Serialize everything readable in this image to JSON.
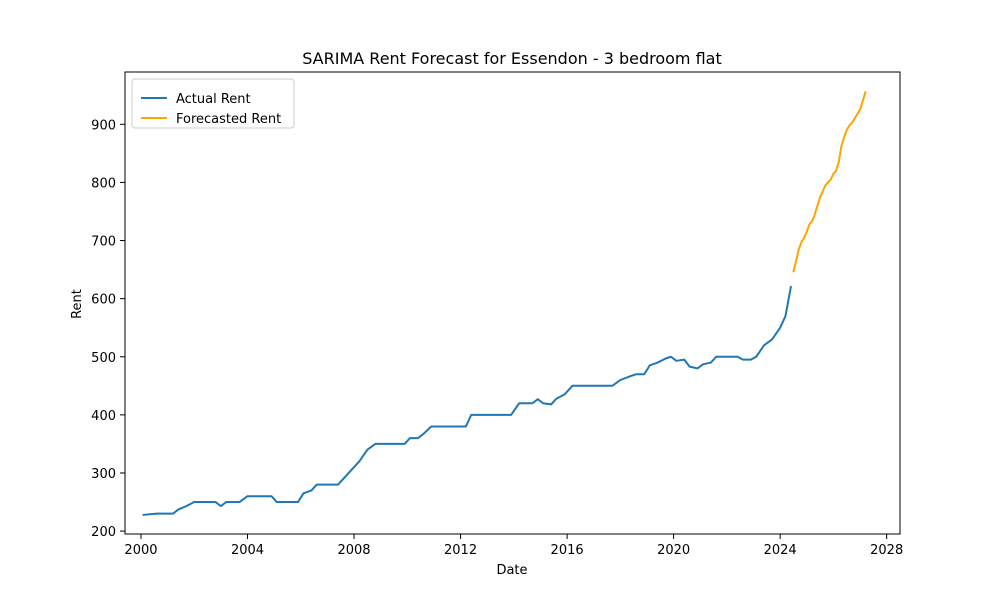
{
  "chart_data": {
    "type": "line",
    "title": "SARIMA Rent Forecast for Essendon - 3 bedroom flat",
    "xlabel": "Date",
    "ylabel": "Rent",
    "xlim": [
      1999.4,
      2028.5
    ],
    "ylim": [
      195,
      990
    ],
    "x_ticks": [
      2000,
      2004,
      2008,
      2012,
      2016,
      2020,
      2024,
      2028
    ],
    "y_ticks": [
      200,
      300,
      400,
      500,
      600,
      700,
      800,
      900
    ],
    "grid": false,
    "legend_position": "top-left",
    "series": [
      {
        "name": "Actual Rent",
        "color": "#1f77b4",
        "points": [
          [
            2000.1,
            228
          ],
          [
            2000.6,
            230
          ],
          [
            2001.0,
            230
          ],
          [
            2001.2,
            230
          ],
          [
            2001.4,
            237
          ],
          [
            2001.7,
            243
          ],
          [
            2002.0,
            250
          ],
          [
            2002.5,
            250
          ],
          [
            2002.8,
            250
          ],
          [
            2003.0,
            243
          ],
          [
            2003.2,
            250
          ],
          [
            2003.7,
            250
          ],
          [
            2004.0,
            260
          ],
          [
            2004.5,
            260
          ],
          [
            2004.9,
            260
          ],
          [
            2005.1,
            250
          ],
          [
            2005.5,
            250
          ],
          [
            2005.9,
            250
          ],
          [
            2006.1,
            265
          ],
          [
            2006.4,
            270
          ],
          [
            2006.6,
            280
          ],
          [
            2007.0,
            280
          ],
          [
            2007.4,
            280
          ],
          [
            2007.8,
            300
          ],
          [
            2008.2,
            320
          ],
          [
            2008.5,
            340
          ],
          [
            2008.8,
            350
          ],
          [
            2009.2,
            350
          ],
          [
            2009.5,
            350
          ],
          [
            2009.9,
            350
          ],
          [
            2010.1,
            360
          ],
          [
            2010.4,
            360
          ],
          [
            2010.6,
            367
          ],
          [
            2010.9,
            380
          ],
          [
            2011.3,
            380
          ],
          [
            2011.7,
            380
          ],
          [
            2012.2,
            380
          ],
          [
            2012.4,
            400
          ],
          [
            2012.8,
            400
          ],
          [
            2013.2,
            400
          ],
          [
            2013.6,
            400
          ],
          [
            2013.9,
            400
          ],
          [
            2014.2,
            420
          ],
          [
            2014.5,
            420
          ],
          [
            2014.7,
            420
          ],
          [
            2014.9,
            427
          ],
          [
            2015.1,
            420
          ],
          [
            2015.4,
            418
          ],
          [
            2015.6,
            428
          ],
          [
            2015.9,
            435
          ],
          [
            2016.2,
            450
          ],
          [
            2016.6,
            450
          ],
          [
            2017.0,
            450
          ],
          [
            2017.4,
            450
          ],
          [
            2017.7,
            450
          ],
          [
            2018.0,
            460
          ],
          [
            2018.4,
            467
          ],
          [
            2018.6,
            470
          ],
          [
            2018.9,
            470
          ],
          [
            2019.1,
            485
          ],
          [
            2019.4,
            490
          ],
          [
            2019.7,
            497
          ],
          [
            2019.9,
            500
          ],
          [
            2020.1,
            493
          ],
          [
            2020.4,
            495
          ],
          [
            2020.6,
            483
          ],
          [
            2020.9,
            480
          ],
          [
            2021.1,
            487
          ],
          [
            2021.4,
            490
          ],
          [
            2021.6,
            500
          ],
          [
            2022.0,
            500
          ],
          [
            2022.4,
            500
          ],
          [
            2022.6,
            495
          ],
          [
            2022.9,
            495
          ],
          [
            2023.1,
            500
          ],
          [
            2023.4,
            520
          ],
          [
            2023.7,
            530
          ],
          [
            2024.0,
            550
          ],
          [
            2024.2,
            570
          ],
          [
            2024.4,
            620
          ]
        ]
      },
      {
        "name": "Forecasted Rent",
        "color": "#ffa500",
        "points": [
          [
            2024.5,
            647
          ],
          [
            2024.6,
            665
          ],
          [
            2024.7,
            685
          ],
          [
            2024.8,
            697
          ],
          [
            2024.9,
            705
          ],
          [
            2025.0,
            715
          ],
          [
            2025.1,
            728
          ],
          [
            2025.2,
            733
          ],
          [
            2025.3,
            745
          ],
          [
            2025.4,
            760
          ],
          [
            2025.5,
            775
          ],
          [
            2025.6,
            785
          ],
          [
            2025.7,
            795
          ],
          [
            2025.8,
            800
          ],
          [
            2025.9,
            805
          ],
          [
            2026.0,
            815
          ],
          [
            2026.1,
            820
          ],
          [
            2026.2,
            835
          ],
          [
            2026.3,
            862
          ],
          [
            2026.4,
            878
          ],
          [
            2026.5,
            890
          ],
          [
            2026.6,
            898
          ],
          [
            2026.7,
            903
          ],
          [
            2026.8,
            910
          ],
          [
            2026.9,
            918
          ],
          [
            2027.0,
            925
          ],
          [
            2027.1,
            940
          ],
          [
            2027.2,
            955
          ]
        ]
      }
    ]
  }
}
